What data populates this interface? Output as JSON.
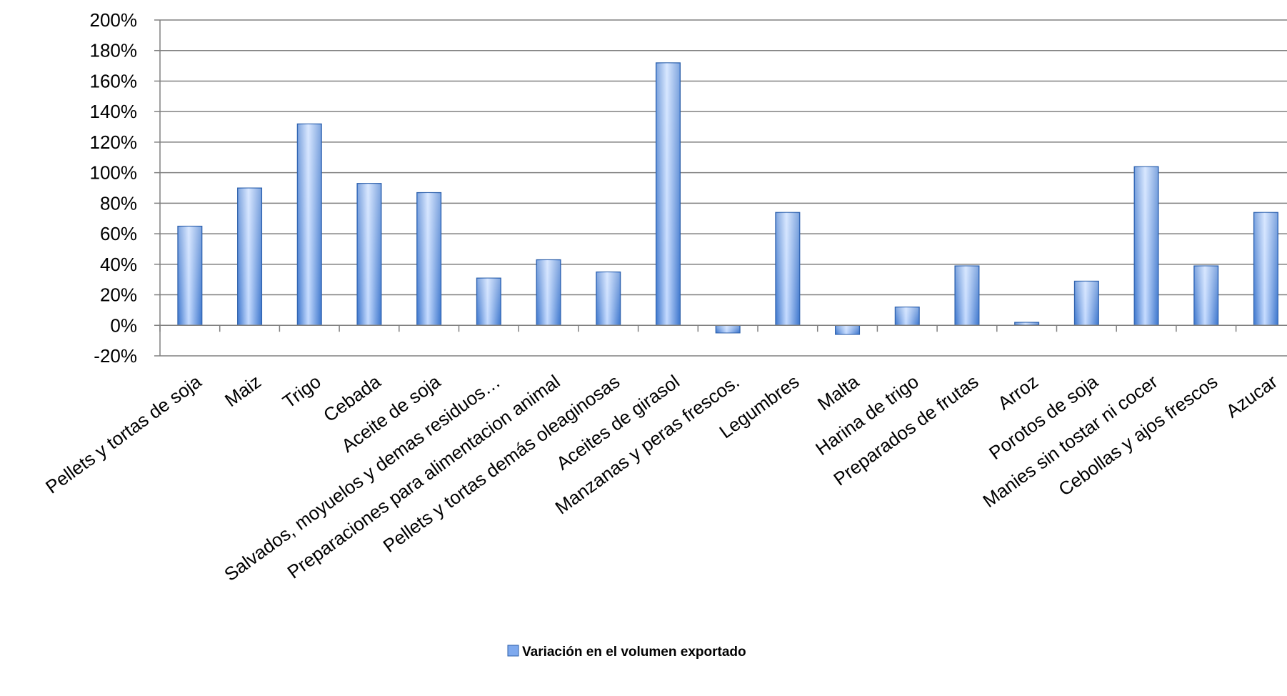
{
  "chart_data": {
    "type": "bar",
    "categories": [
      "Pellets y tortas de soja",
      "Maiz",
      "Trigo",
      "Cebada",
      "Aceite de soja",
      "Salvados, moyuelos y demas residuos…",
      "Preparaciones para alimentacion animal",
      "Pellets y tortas demás oleaginosas",
      "Aceites de girasol",
      "Manzanas y peras frescos.",
      "Legumbres",
      "Malta",
      "Harina de trigo",
      "Preparados de frutas",
      "Arroz",
      "Porotos de soja",
      "Manies sin tostar ni cocer",
      "Cebollas y ajos frescos",
      "Azucar"
    ],
    "series": [
      {
        "name": "Variación en el volumen exportado",
        "values": [
          0.65,
          0.9,
          1.32,
          0.93,
          0.87,
          0.31,
          0.43,
          0.35,
          1.72,
          -0.05,
          0.74,
          -0.06,
          0.12,
          0.39,
          0.02,
          0.29,
          1.04,
          0.39,
          0.74
        ]
      }
    ],
    "ylim": [
      -0.2,
      2.0
    ],
    "yticks": [
      -0.2,
      0,
      0.2,
      0.4,
      0.6,
      0.8,
      1.0,
      1.2,
      1.4,
      1.6,
      1.8,
      2.0
    ],
    "ytick_labels": [
      "-20%",
      "0%",
      "20%",
      "40%",
      "60%",
      "80%",
      "100%",
      "120%",
      "140%",
      "160%",
      "180%",
      "200%"
    ],
    "grid": true,
    "legend_position": "bottom",
    "colors": {
      "bar_light": "#c5dbff",
      "bar_mid": "#7ea9ee",
      "bar_dark": "#3a74cc",
      "bar_edge": "#2d5fa8",
      "grid": "#808080",
      "axis": "#808080"
    }
  }
}
